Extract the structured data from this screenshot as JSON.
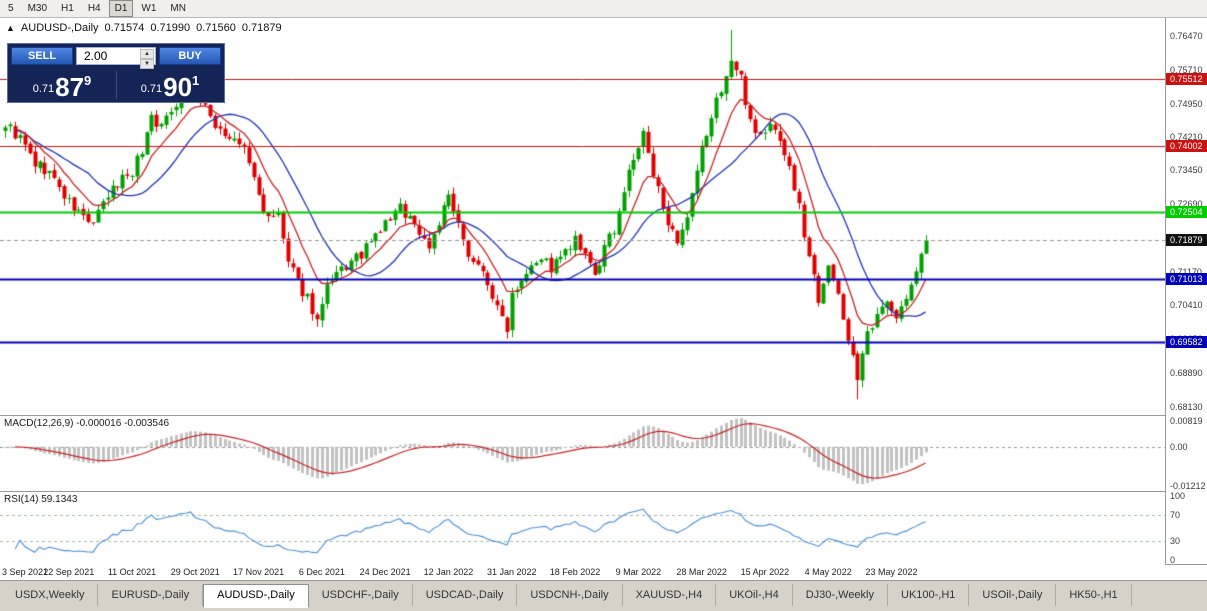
{
  "toolbar": {
    "timeframes": [
      "5",
      "M30",
      "H1",
      "H4",
      "D1",
      "W1",
      "MN"
    ],
    "active": "D1"
  },
  "chart": {
    "header": {
      "symbol": "AUDUSD-,Daily",
      "open": "0.71574",
      "high": "0.71990",
      "low": "0.71560",
      "close": "0.71879"
    },
    "trade_panel": {
      "sell_label": "SELL",
      "buy_label": "BUY",
      "volume": "2.00",
      "bid": {
        "prefix": "0.71",
        "big": "87",
        "sup": "9"
      },
      "ask": {
        "prefix": "0.71",
        "big": "90",
        "sup": "1"
      }
    },
    "levels": [
      {
        "value": 0.75512,
        "label": "0.75512",
        "color": "#cc1111",
        "width": 1
      },
      {
        "value": 0.74002,
        "label": "0.74002",
        "color": "#cc1111",
        "width": 1
      },
      {
        "value": 0.72504,
        "label": "0.72504",
        "color": "#00cc00",
        "width": 2
      },
      {
        "value": 0.71013,
        "label": "0.71013",
        "color": "#0000bb",
        "width": 2
      },
      {
        "value": 0.69582,
        "label": "0.69582",
        "color": "#0000bb",
        "width": 2
      }
    ],
    "current_price": {
      "value": 0.71879,
      "label": "0.71879",
      "color": "#111111"
    },
    "scale_ticks": [
      0.7647,
      0.7571,
      0.7495,
      0.7421,
      0.7345,
      0.7269,
      0.7117,
      0.7041,
      0.6965,
      0.6889,
      0.6813
    ]
  },
  "macd": {
    "label": "MACD(12,26,9) -0.000016 -0.003546",
    "ticks": [
      {
        "value": 0.00819,
        "label": "0.00819"
      },
      {
        "value": 0.0,
        "label": "0.00"
      },
      {
        "value": -0.01212,
        "label": "-0.01212"
      }
    ],
    "range": {
      "max": 0.0096,
      "min": -0.0138
    }
  },
  "rsi": {
    "label": "RSI(14) 59.1343",
    "ticks": [
      {
        "value": 100,
        "label": "100"
      },
      {
        "value": 70,
        "label": "70"
      },
      {
        "value": 30,
        "label": "30"
      },
      {
        "value": 0,
        "label": "0"
      }
    ],
    "levels": [
      70,
      30
    ]
  },
  "tabs": {
    "items": [
      "USDX,Weekly",
      "EURUSD-,Daily",
      "AUDUSD-,Daily",
      "USDCHF-,Daily",
      "USDCAD-,Daily",
      "USDCNH-,Daily",
      "XAUUSD-,H4",
      "UKOil-,H4",
      "DJ30-,Weekly",
      "UK100-,H1",
      "USOil-,Daily",
      "HK50-,H1"
    ],
    "active_index": 2
  },
  "colors": {
    "candle_up": "#00a000",
    "candle_down": "#e00000",
    "ma_fast": "#cc2222",
    "ma_slow": "#2233bb",
    "macd_hist": "#c2c2c2",
    "macd_signal": "#cc2222",
    "rsi_line": "#4a90d9",
    "last_price_line": "#999999"
  },
  "chart_data": {
    "type": "candlestick",
    "title": "AUDUSD-,Daily",
    "symbol": "AUDUSD",
    "timeframe": "Daily",
    "visible_bars": 190,
    "y_range": [
      0.6794,
      0.7688
    ],
    "date_labels": [
      "3 Sep 2021",
      "22 Sep 2021",
      "11 Oct 2021",
      "29 Oct 2021",
      "17 Nov 2021",
      "6 Dec 2021",
      "24 Dec 2021",
      "12 Jan 2022",
      "31 Jan 2022",
      "18 Feb 2022",
      "9 Mar 2022",
      "28 Mar 2022",
      "15 Apr 2022",
      "4 May 2022",
      "23 May 2022"
    ],
    "label_step_bars": 13,
    "price_path": [
      [
        0,
        0.745
      ],
      [
        3,
        0.7415
      ],
      [
        6,
        0.736
      ],
      [
        9,
        0.734
      ],
      [
        13,
        0.727
      ],
      [
        16,
        0.724
      ],
      [
        18,
        0.7225
      ],
      [
        21,
        0.7285
      ],
      [
        24,
        0.733
      ],
      [
        26,
        0.7345
      ],
      [
        28,
        0.739
      ],
      [
        30,
        0.747
      ],
      [
        32,
        0.744
      ],
      [
        34,
        0.7485
      ],
      [
        36,
        0.7515
      ],
      [
        38,
        0.7535
      ],
      [
        40,
        0.7495
      ],
      [
        43,
        0.745
      ],
      [
        46,
        0.7415
      ],
      [
        49,
        0.7395
      ],
      [
        52,
        0.729
      ],
      [
        54,
        0.723
      ],
      [
        56,
        0.7245
      ],
      [
        58,
        0.7135
      ],
      [
        60,
        0.709
      ],
      [
        62,
        0.706
      ],
      [
        64,
        0.7005
      ],
      [
        66,
        0.7075
      ],
      [
        69,
        0.712
      ],
      [
        72,
        0.7145
      ],
      [
        75,
        0.718
      ],
      [
        78,
        0.7225
      ],
      [
        81,
        0.726
      ],
      [
        83,
        0.724
      ],
      [
        85,
        0.7205
      ],
      [
        87,
        0.7175
      ],
      [
        89,
        0.723
      ],
      [
        91,
        0.7285
      ],
      [
        94,
        0.718
      ],
      [
        97,
        0.713
      ],
      [
        99,
        0.7095
      ],
      [
        101,
        0.703
      ],
      [
        103,
        0.6995
      ],
      [
        104,
        0.707
      ],
      [
        106,
        0.7105
      ],
      [
        108,
        0.714
      ],
      [
        110,
        0.715
      ],
      [
        112,
        0.7125
      ],
      [
        114,
        0.7145
      ],
      [
        117,
        0.7185
      ],
      [
        119,
        0.7145
      ],
      [
        121,
        0.711
      ],
      [
        123,
        0.7165
      ],
      [
        125,
        0.7215
      ],
      [
        127,
        0.73
      ],
      [
        129,
        0.737
      ],
      [
        131,
        0.7425
      ],
      [
        133,
        0.733
      ],
      [
        135,
        0.727
      ],
      [
        137,
        0.72
      ],
      [
        138,
        0.717
      ],
      [
        140,
        0.723
      ],
      [
        143,
        0.739
      ],
      [
        146,
        0.75
      ],
      [
        149,
        0.759
      ],
      [
        151,
        0.755
      ],
      [
        153,
        0.746
      ],
      [
        155,
        0.742
      ],
      [
        157,
        0.7445
      ],
      [
        159,
        0.742
      ],
      [
        161,
        0.735
      ],
      [
        163,
        0.726
      ],
      [
        165,
        0.715
      ],
      [
        167,
        0.706
      ],
      [
        169,
        0.714
      ],
      [
        170,
        0.71
      ],
      [
        172,
        0.701
      ],
      [
        174,
        0.693
      ],
      [
        175,
        0.688
      ],
      [
        177,
        0.697
      ],
      [
        179,
        0.701
      ],
      [
        181,
        0.706
      ],
      [
        183,
        0.702
      ],
      [
        185,
        0.705
      ],
      [
        187,
        0.712
      ],
      [
        189,
        0.71879
      ]
    ],
    "wick_overrides": {
      "38": {
        "high": 0.7555
      },
      "64": {
        "low": 0.6993
      },
      "103": {
        "low": 0.6966
      },
      "131": {
        "high": 0.7441
      },
      "149": {
        "high": 0.7661
      },
      "175": {
        "low": 0.6829
      }
    },
    "last_bar": {
      "open": 0.71574,
      "high": 0.7199,
      "low": 0.7156,
      "close": 0.71879
    },
    "noise": {
      "seed": 9,
      "close_amp": 0.0028,
      "wick_amp": 0.0016
    },
    "indicators": {
      "ma_fast_period": 9,
      "ma_slow_period": 18,
      "macd": [
        12,
        26,
        9
      ],
      "rsi_period": 14
    }
  }
}
